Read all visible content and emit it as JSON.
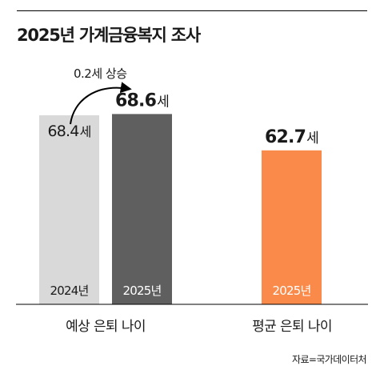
{
  "title": "2025년 가계금융복지 조사",
  "source": "자료=국가데이터처",
  "annotation": {
    "text": "0.2세 상승"
  },
  "colors": {
    "bar_2024": "#d9d9d9",
    "bar_2025": "#5f5f5f",
    "bar_avg": "#f98a4a",
    "year_on_light": "#1a1a1a",
    "year_on_dark": "#ffffff"
  },
  "chart_data": {
    "type": "bar",
    "value_unit": "세",
    "groups": [
      {
        "label": "예상 은퇴 나이",
        "bars": [
          {
            "year": "2024년",
            "value": 68.4,
            "color": "#d9d9d9"
          },
          {
            "year": "2025년",
            "value": 68.6,
            "color": "#5f5f5f"
          }
        ]
      },
      {
        "label": "평균 은퇴 나이",
        "bars": [
          {
            "year": "2025년",
            "value": 62.7,
            "color": "#f98a4a"
          }
        ]
      }
    ]
  }
}
